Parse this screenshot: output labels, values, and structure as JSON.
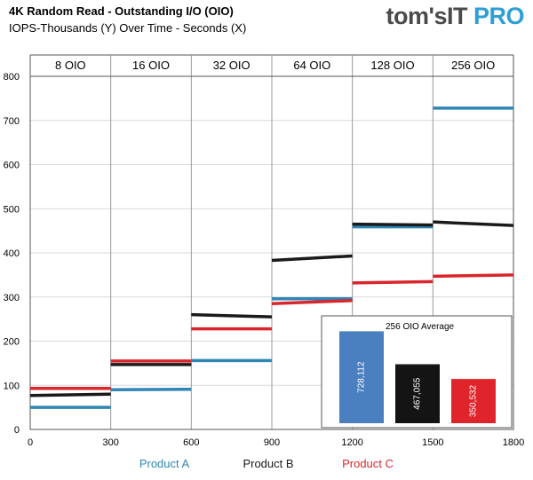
{
  "header": {
    "title": "4K Random Read - Outstanding I/O (OIO)",
    "subtitle": "IOPS-Thousands (Y) Over Time - Seconds (X)"
  },
  "logo": {
    "brand_text": "tom'sIT ",
    "pro_text": "PRO"
  },
  "colors": {
    "product_a": "#2f86b4",
    "product_b": "#1a1a1a",
    "product_c": "#d9262c",
    "inset_a": "#4a7fc0",
    "inset_b": "#141414",
    "inset_c": "#e0242b"
  },
  "chart_data": [
    {
      "type": "scatter",
      "title": "4K Random Read - Outstanding I/O (OIO)",
      "xlabel": "",
      "ylabel": "",
      "xlim": [
        0,
        1800
      ],
      "ylim": [
        0,
        800
      ],
      "x_ticks": [
        0,
        300,
        600,
        900,
        1200,
        1500,
        1800
      ],
      "y_ticks": [
        0,
        100,
        200,
        300,
        400,
        500,
        600,
        700,
        800
      ],
      "grid": true,
      "legend": "bottom",
      "oio_sections": [
        "8 OIO",
        "16 OIO",
        "32  OIO",
        "64 OIO",
        "128 OIO",
        "256 OIO"
      ],
      "series": [
        {
          "name": "Product  A",
          "segments": [
            {
              "x": [
                0,
                300
              ],
              "y": [
                50,
                50
              ]
            },
            {
              "x": [
                300,
                600
              ],
              "y": [
                90,
                91
              ]
            },
            {
              "x": [
                600,
                900
              ],
              "y": [
                156,
                156
              ]
            },
            {
              "x": [
                900,
                1200
              ],
              "y": [
                296,
                296
              ]
            },
            {
              "x": [
                1200,
                1500
              ],
              "y": [
                459,
                459
              ]
            },
            {
              "x": [
                1500,
                1800
              ],
              "y": [
                728,
                728
              ]
            }
          ]
        },
        {
          "name": "Product  B",
          "segments": [
            {
              "x": [
                0,
                300
              ],
              "y": [
                77,
                80
              ]
            },
            {
              "x": [
                300,
                600
              ],
              "y": [
                147,
                147
              ]
            },
            {
              "x": [
                600,
                900
              ],
              "y": [
                260,
                255
              ]
            },
            {
              "x": [
                900,
                1200
              ],
              "y": [
                383,
                393
              ]
            },
            {
              "x": [
                1200,
                1500
              ],
              "y": [
                465,
                463
              ]
            },
            {
              "x": [
                1500,
                1800
              ],
              "y": [
                470,
                462
              ]
            }
          ]
        },
        {
          "name": "Product  C",
          "segments": [
            {
              "x": [
                0,
                300
              ],
              "y": [
                93,
                93
              ]
            },
            {
              "x": [
                300,
                600
              ],
              "y": [
                155,
                155
              ]
            },
            {
              "x": [
                600,
                900
              ],
              "y": [
                228,
                228
              ]
            },
            {
              "x": [
                900,
                1200
              ],
              "y": [
                285,
                292
              ]
            },
            {
              "x": [
                1200,
                1500
              ],
              "y": [
                332,
                335
              ]
            },
            {
              "x": [
                1500,
                1800
              ],
              "y": [
                347,
                350
              ]
            }
          ]
        }
      ]
    },
    {
      "type": "bar",
      "title": "256 OIO Average",
      "categories": [
        "Product A",
        "Product B",
        "Product C"
      ],
      "values": [
        728.112,
        467.055,
        350.532
      ],
      "value_labels": [
        "728,112",
        "467,055",
        "350,532"
      ],
      "ylim": [
        0,
        780
      ]
    }
  ]
}
